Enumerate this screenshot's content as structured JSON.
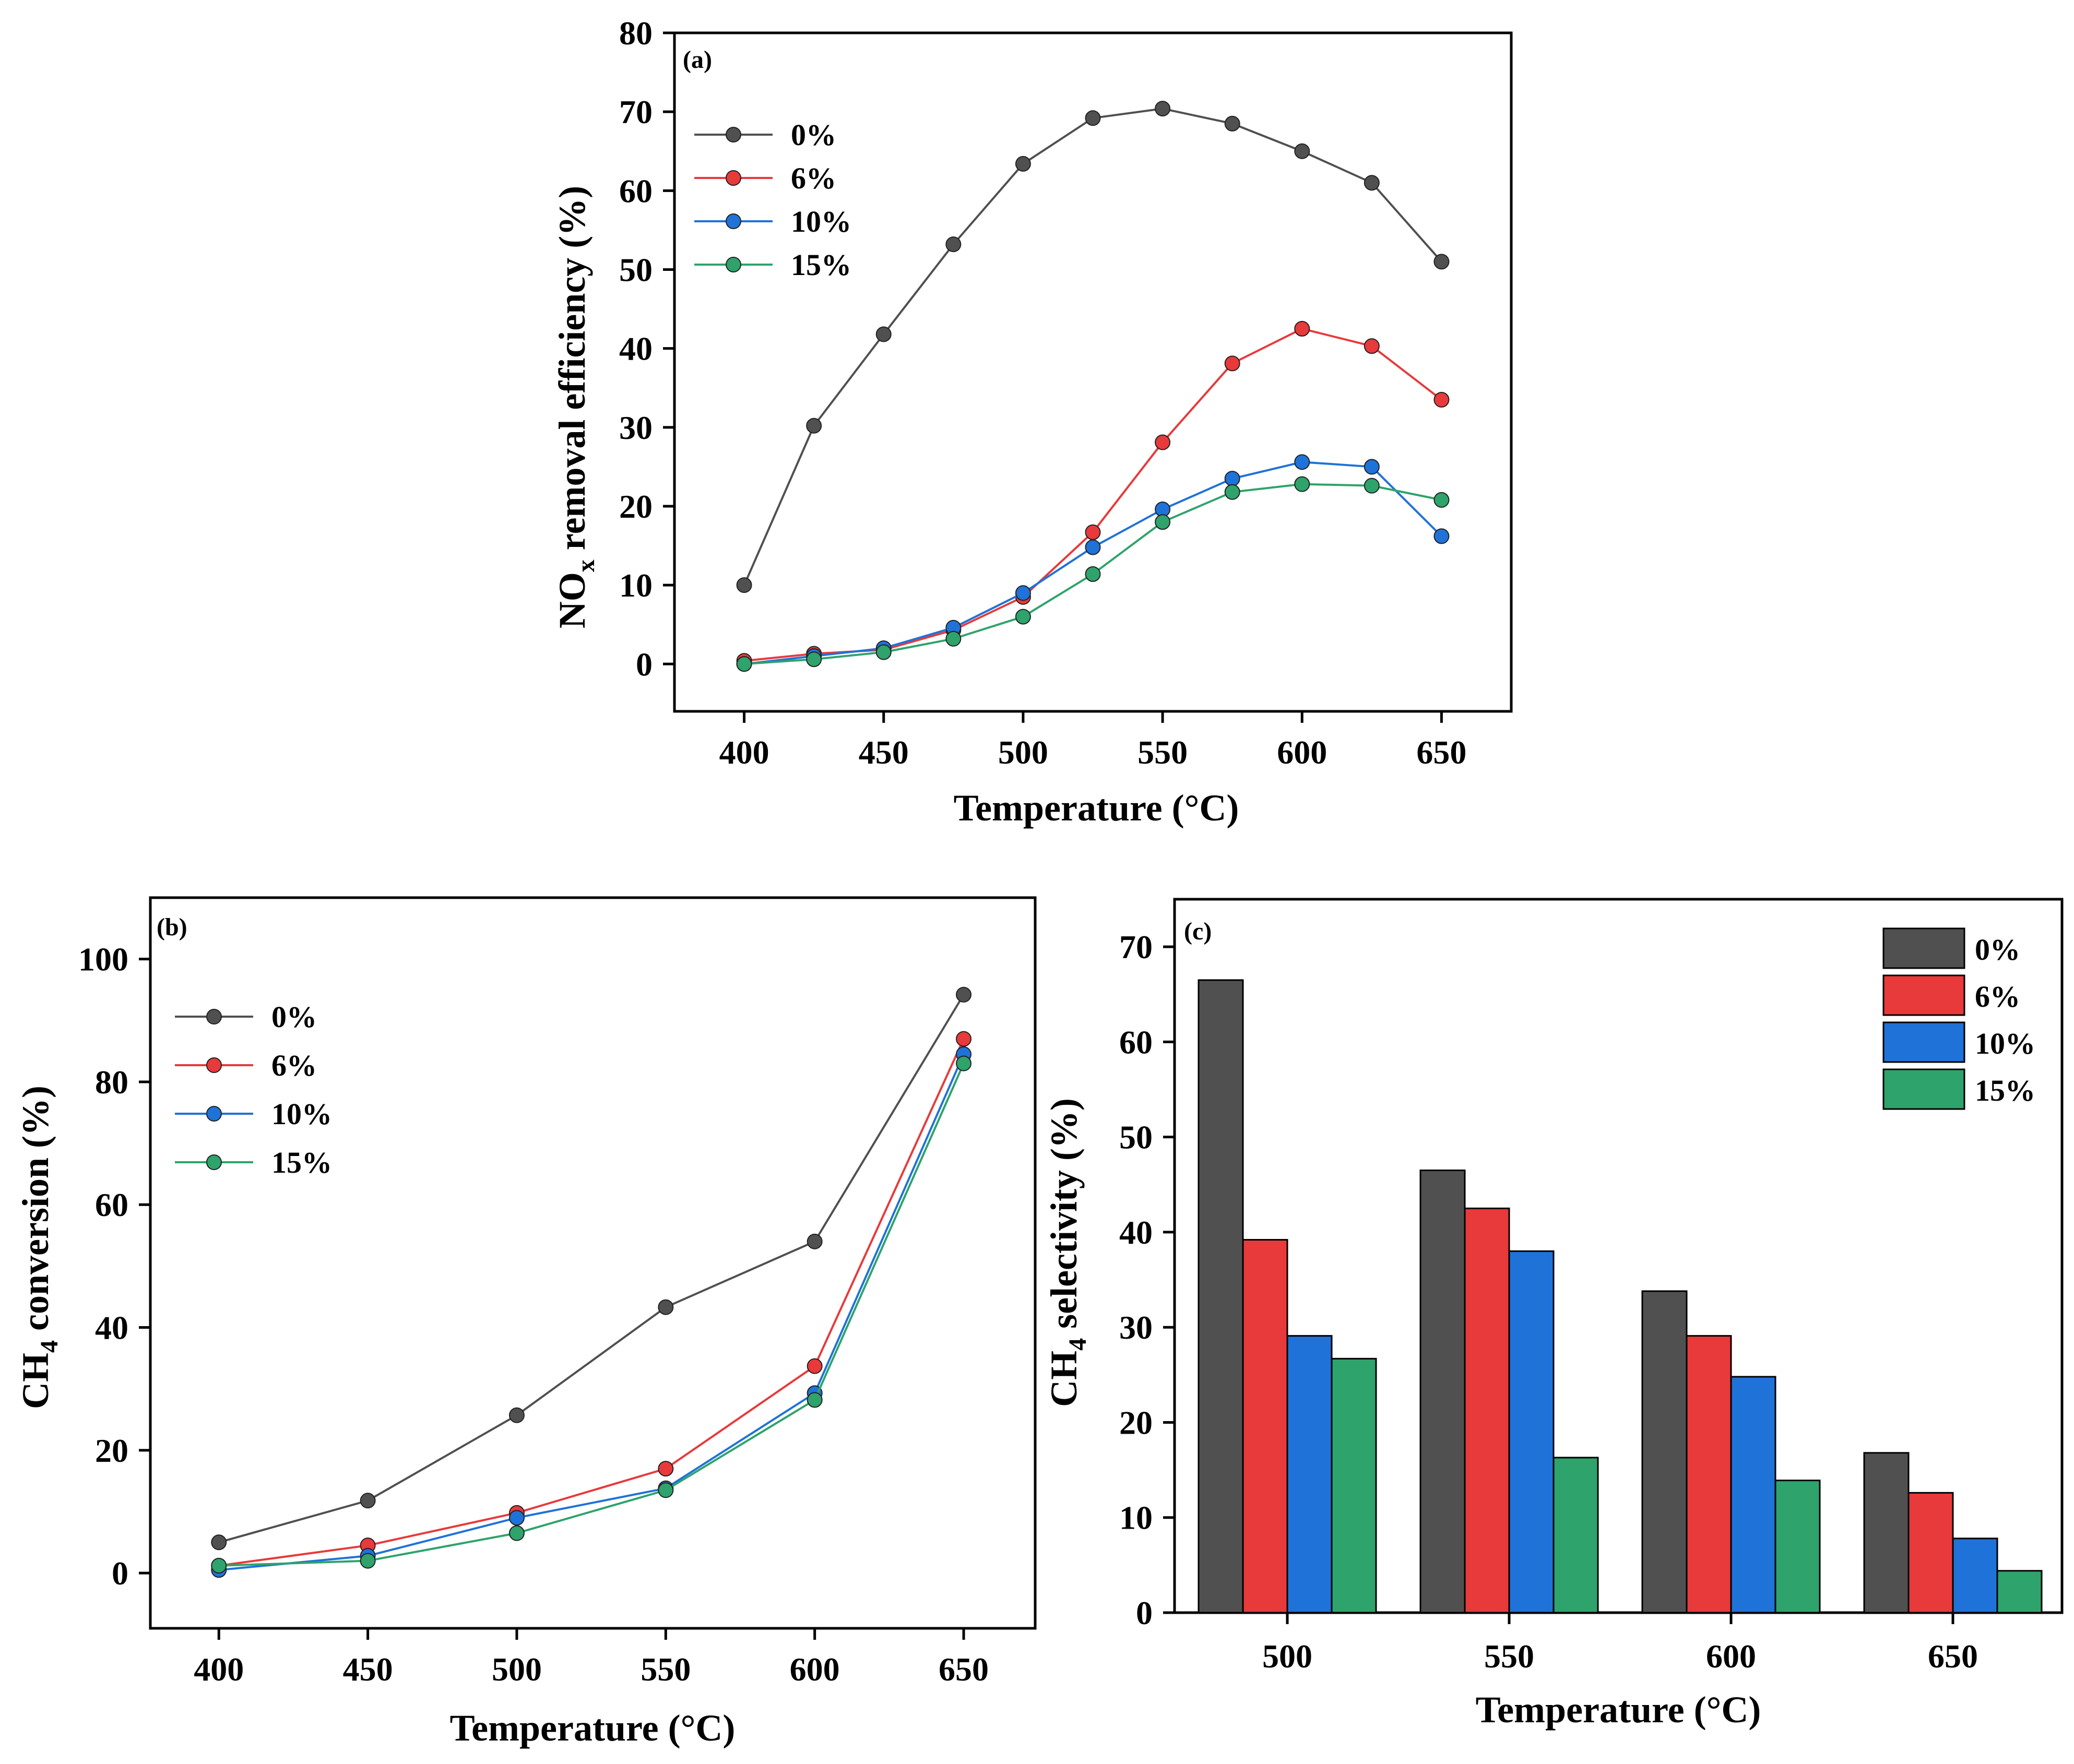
{
  "colors": {
    "0%": "#505050",
    "6%": "#e8393b",
    "10%": "#1f72d8",
    "15%": "#2ea36b"
  },
  "chart_data": [
    {
      "id": "a",
      "panel_label": "(a)",
      "type": "line",
      "xlabel": "Temperature (°C)",
      "ylabel_main": "NO",
      "ylabel_sub": "x",
      "ylabel_rest": " removal efficiency (%)",
      "xlim": [
        375,
        675
      ],
      "ylim": [
        -6,
        80
      ],
      "xticks": [
        400,
        450,
        500,
        550,
        600,
        650
      ],
      "yticks": [
        0,
        10,
        20,
        30,
        40,
        50,
        60,
        70,
        80
      ],
      "x": [
        400,
        425,
        450,
        475,
        500,
        525,
        550,
        575,
        600,
        625,
        650
      ],
      "series": [
        {
          "name": "0%",
          "values": [
            10,
            30.2,
            41.8,
            53.2,
            63.4,
            69.2,
            70.4,
            68.5,
            65,
            61,
            51
          ]
        },
        {
          "name": "6%",
          "values": [
            0.4,
            1.3,
            1.8,
            4.3,
            8.5,
            16.7,
            28.1,
            38.1,
            42.5,
            40.3,
            33.5
          ]
        },
        {
          "name": "10%",
          "values": [
            0,
            1,
            2,
            4.6,
            9,
            14.8,
            19.6,
            23.5,
            25.6,
            25,
            16.2
          ]
        },
        {
          "name": "15%",
          "values": [
            0,
            0.6,
            1.5,
            3.2,
            6,
            11.4,
            18,
            21.8,
            22.8,
            22.6,
            20.8
          ]
        }
      ]
    },
    {
      "id": "b",
      "panel_label": "(b)",
      "type": "line",
      "xlabel": "Temperature (°C)",
      "ylabel_main": "CH",
      "ylabel_sub": "4",
      "ylabel_rest": " conversion (%)",
      "xlim": [
        377,
        674
      ],
      "ylim": [
        -9,
        110
      ],
      "xticks": [
        400,
        450,
        500,
        550,
        600,
        650
      ],
      "yticks": [
        0,
        20,
        40,
        60,
        80,
        100
      ],
      "x": [
        400,
        450,
        500,
        550,
        600,
        650
      ],
      "series": [
        {
          "name": "0%",
          "values": [
            5,
            11.8,
            25.7,
            43.3,
            54,
            94.2
          ]
        },
        {
          "name": "6%",
          "values": [
            1.2,
            4.5,
            9.8,
            17,
            33.7,
            87
          ]
        },
        {
          "name": "10%",
          "values": [
            0.5,
            2.8,
            9,
            13.8,
            29.3,
            84.5
          ]
        },
        {
          "name": "15%",
          "values": [
            1.2,
            2,
            6.5,
            13.5,
            28.2,
            83
          ]
        }
      ]
    },
    {
      "id": "c",
      "panel_label": "(c)",
      "type": "bar",
      "xlabel": "Temperature (°C)",
      "ylabel_main": "CH",
      "ylabel_sub": "4",
      "ylabel_rest": " selectivity (%)",
      "ylim": [
        0,
        75
      ],
      "yticks": [
        0,
        10,
        20,
        30,
        40,
        50,
        60,
        70
      ],
      "categories": [
        "500",
        "550",
        "600",
        "650"
      ],
      "series": [
        {
          "name": "0%",
          "values": [
            66.5,
            46.5,
            33.8,
            16.8
          ]
        },
        {
          "name": "6%",
          "values": [
            39.2,
            42.5,
            29.1,
            12.6
          ]
        },
        {
          "name": "10%",
          "values": [
            29.1,
            38,
            24.8,
            7.8
          ]
        },
        {
          "name": "15%",
          "values": [
            26.7,
            16.3,
            13.9,
            4.4
          ]
        }
      ]
    }
  ]
}
